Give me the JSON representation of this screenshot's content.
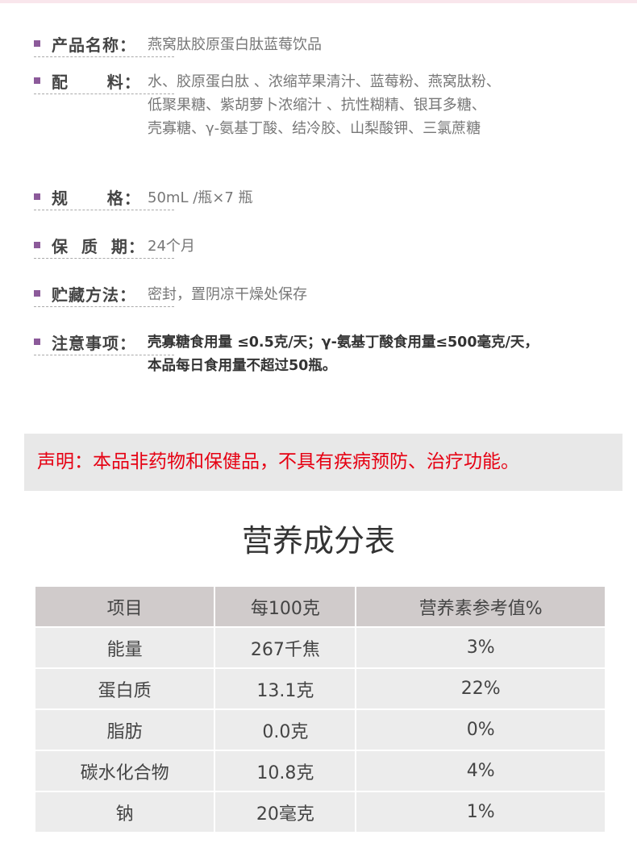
{
  "colors": {
    "bullet": "#8c5a9a",
    "warning": "#e60012",
    "header_bg": "#d0cbcb",
    "row_bg": "#ececec"
  },
  "info": [
    {
      "label": "产品名称：",
      "value": [
        "燕窝肽胶原蛋白肽蓝莓饮品"
      ]
    },
    {
      "label": "配      料：",
      "value": [
        "水、胶原蛋白肽 、浓缩苹果清汁、蓝莓粉、燕窝肽粉、",
        "低聚果糖、紫胡萝卜浓缩汁 、抗性糊精、银耳多糖、",
        "壳寡糖、γ-氨基丁酸、结冷胶、山梨酸钾、三氯蔗糖"
      ]
    },
    {
      "label": "规      格：",
      "value": [
        "50mL /瓶×7 瓶"
      ]
    },
    {
      "label": "保  质  期：",
      "value": [
        "24个月"
      ]
    },
    {
      "label": "贮藏方法：",
      "value": [
        "密封，置阴凉干燥处保存"
      ]
    },
    {
      "label": "注意事项：",
      "value": [
        "壳寡糖食用量 ≤0.5克/天；γ-氨基丁酸食用量≤500毫克/天，",
        "本品每日食用量不超过50瓶。"
      ]
    }
  ],
  "declaration": "声明：本品非药物和保健品，不具有疾病预防、治疗功能。",
  "nutrition": {
    "title": "营养成分表",
    "headers": [
      "项目",
      "每100克",
      "营养素参考值%"
    ],
    "rows": [
      [
        "能量",
        "267千焦",
        "3%"
      ],
      [
        "蛋白质",
        "13.1克",
        "22%"
      ],
      [
        "脂肪",
        "0.0克",
        "0%"
      ],
      [
        "碳水化合物",
        "10.8克",
        "4%"
      ],
      [
        "钠",
        "20毫克",
        "1%"
      ]
    ]
  }
}
